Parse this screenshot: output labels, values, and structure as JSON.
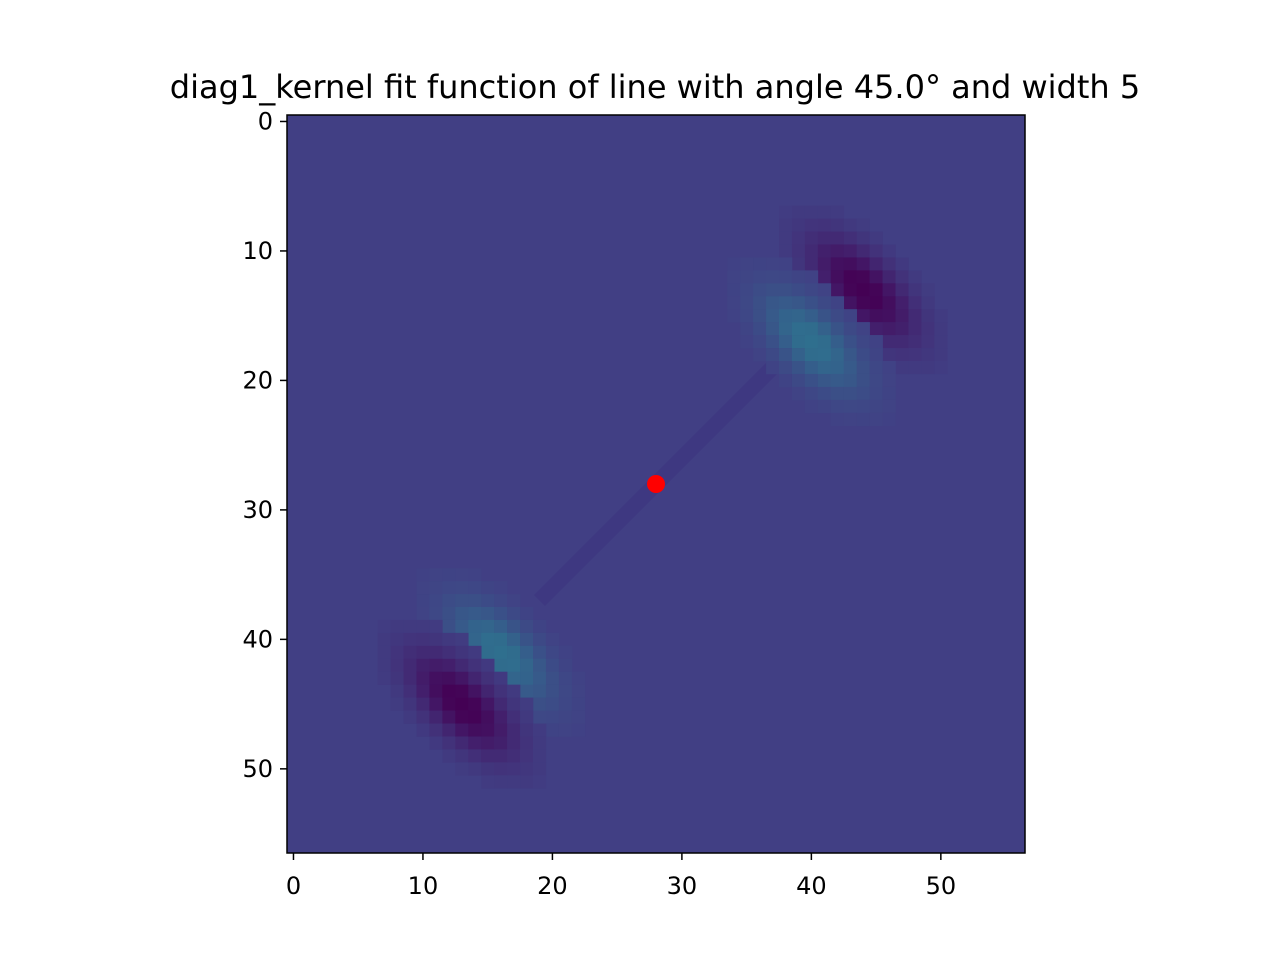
{
  "chart_data": {
    "type": "heatmap",
    "title": "diag1_kernel fit function of line with angle 45.0° and width 5",
    "xlabel": "",
    "ylabel": "",
    "xlim": [
      -0.5,
      56.5
    ],
    "ylim": [
      56.5,
      -0.5
    ],
    "grid": false,
    "x_ticks": [
      0,
      10,
      20,
      30,
      40,
      50
    ],
    "y_ticks": [
      0,
      10,
      20,
      30,
      40,
      50
    ],
    "x_tick_labels": [
      "0",
      "10",
      "20",
      "30",
      "40",
      "50"
    ],
    "y_tick_labels": [
      "0",
      "10",
      "20",
      "30",
      "40",
      "50"
    ],
    "colormap": "viridis",
    "background_color": "#413f84",
    "blobs": [
      {
        "name": "upper-dark-band",
        "center": [
          44,
          13
        ],
        "length": 9,
        "halfwidth": 1.6,
        "intensity": -1.0,
        "color": "#440154"
      },
      {
        "name": "upper-teal-band",
        "center": [
          40,
          17
        ],
        "length": 9,
        "halfwidth": 1.6,
        "intensity": 1.0,
        "color": "#2f6f8e"
      },
      {
        "name": "lower-teal-band",
        "center": [
          16,
          41
        ],
        "length": 9,
        "halfwidth": 1.6,
        "intensity": 1.0,
        "color": "#2f6f8e"
      },
      {
        "name": "lower-dark-band",
        "center": [
          13,
          45
        ],
        "length": 9,
        "halfwidth": 1.6,
        "intensity": -1.0,
        "color": "#440154"
      }
    ],
    "center_point": {
      "x": 28,
      "y": 28,
      "color": "#ff0000"
    }
  }
}
